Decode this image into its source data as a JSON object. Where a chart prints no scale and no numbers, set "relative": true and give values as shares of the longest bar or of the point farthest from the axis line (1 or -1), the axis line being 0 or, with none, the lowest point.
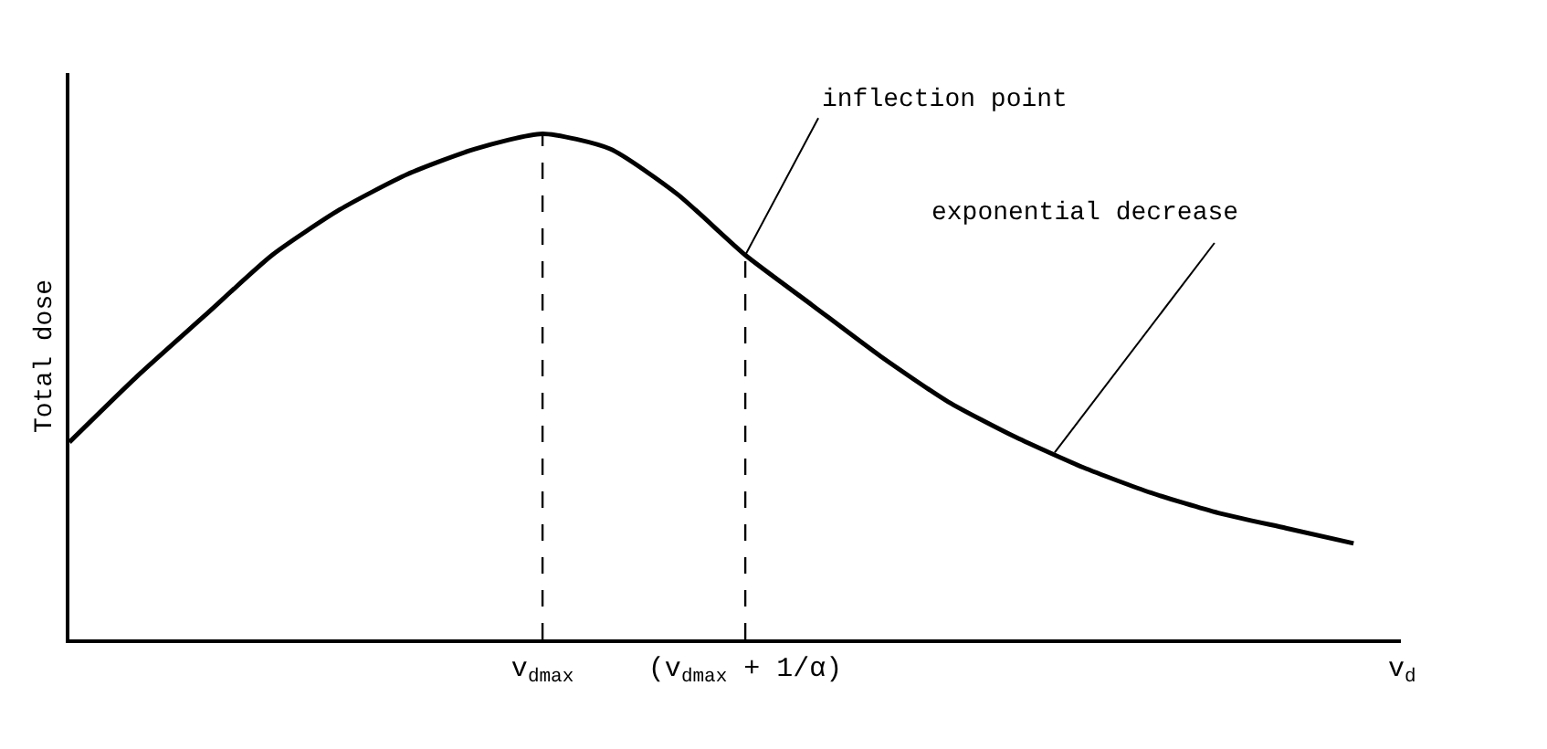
{
  "chart_data": {
    "type": "line",
    "relative": true,
    "ylabel": "Total dose",
    "xlabel": "v$_{d}$",
    "categories": [
      null,
      null,
      null,
      null,
      null,
      null,
      null,
      "v$_{dmax}$",
      null,
      null,
      "(v$_{dmax}$ + 1/α)",
      null,
      null,
      null,
      null,
      null,
      null,
      null,
      null,
      null
    ],
    "series": [
      {
        "color": "#000000",
        "values": [
          0.39,
          0.52,
          0.64,
          0.76,
          0.85,
          0.92,
          0.97,
          1.0,
          0.97,
          0.88,
          0.76,
          0.66,
          0.56,
          0.47,
          0.4,
          0.34,
          0.29,
          0.25,
          0.22,
          0.19
        ]
      }
    ],
    "ref_lines": [
      {
        "axis": "x",
        "value": "v$_{dmax}$",
        "line_style": "dashed",
        "color": "#000000"
      },
      {
        "axis": "x",
        "value": "(v$_{dmax}$ + 1/α)",
        "line_style": "dashed",
        "color": "#000000"
      }
    ],
    "annotations": [
      {
        "text": "inflection point",
        "x": "(v$_{dmax}$ + 1/α)",
        "y": 0.76
      },
      "exponential decrease"
    ],
    "marker": "none",
    "line_style": "solid"
  }
}
